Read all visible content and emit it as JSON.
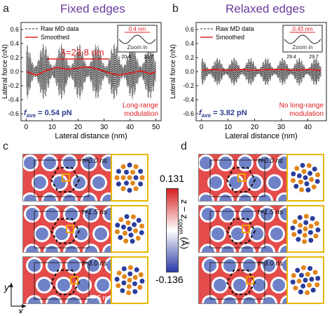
{
  "panels": {
    "a": {
      "letter": "a",
      "title": "Fixed edges"
    },
    "b": {
      "letter": "b",
      "title": "Relaxed edges"
    },
    "c": {
      "letter": "c"
    },
    "d": {
      "letter": "d"
    }
  },
  "chart_data": [
    {
      "type": "line",
      "panel": "a",
      "xlabel": "Lateral distance (nm)",
      "ylabel": "Lateral force (nN)",
      "xlim": [
        -2,
        52
      ],
      "ylim": [
        -0.7,
        0.7
      ],
      "xticks": [
        "0",
        "10",
        "20",
        "30",
        "40",
        "50"
      ],
      "yticks": [
        "-0.6",
        "-0.4",
        "-0.2",
        "0.0",
        "0.2",
        "0.4",
        "0.6"
      ],
      "legend": [
        "Raw MD data",
        "Smoothed"
      ],
      "legend_position": "top-left",
      "annotations": {
        "wavelength": "λ=23.8 nm",
        "inset_period": "0.4 nm",
        "inset_zoom": "Zoom in",
        "inset_ticks": [
          "20.4",
          "20.7"
        ],
        "fave_label": "f",
        "fave_sub": "ave",
        "fave_value": " = 0.54 pN",
        "modulation": [
          "Long-range",
          "modulation"
        ]
      },
      "series": [
        {
          "name": "Raw MD data",
          "style": "dashed",
          "color": "#222222",
          "amplitude": 0.4,
          "range": [
            0,
            50
          ]
        },
        {
          "name": "Smoothed",
          "color": "#e02020",
          "x": [
            0,
            4,
            8,
            12,
            16,
            20,
            24,
            28,
            32,
            36,
            40,
            44,
            48,
            50
          ],
          "y": [
            0.0,
            -0.05,
            0.02,
            0.06,
            0.03,
            0.05,
            0.07,
            0.03,
            -0.02,
            -0.05,
            -0.02,
            0.01,
            -0.03,
            0.0
          ]
        }
      ]
    },
    {
      "type": "line",
      "panel": "b",
      "xlabel": "Lateral distance (nm)",
      "ylabel": "Lateral force (nN)",
      "xlim": [
        -2,
        47
      ],
      "ylim": [
        -0.7,
        0.7
      ],
      "xticks": [
        "0",
        "10",
        "20",
        "30",
        "40"
      ],
      "yticks": [
        "-0.6",
        "-0.4",
        "-0.2",
        "0.0",
        "0.2",
        "0.4",
        "0.6"
      ],
      "legend": [
        "Raw MD data",
        "Smoothed"
      ],
      "legend_position": "top-left",
      "annotations": {
        "inset_period": "0.43 nm",
        "inset_zoom": "Zoom in",
        "inset_ticks": [
          "29.4",
          "29.7"
        ],
        "fave_label": "f",
        "fave_sub": "ave",
        "fave_value": " = 3.82 pN",
        "modulation": [
          "No long-range",
          "modulation"
        ]
      },
      "series": [
        {
          "name": "Raw MD data",
          "style": "dashed",
          "color": "#222222",
          "amplitude": 0.2,
          "range": [
            0,
            45
          ]
        },
        {
          "name": "Smoothed",
          "color": "#e02020",
          "x": [
            0,
            5,
            10,
            15,
            20,
            25,
            30,
            35,
            40,
            45
          ],
          "y": [
            0.02,
            0.03,
            0.02,
            0.03,
            0.02,
            0.03,
            0.03,
            0.02,
            0.03,
            0.02
          ]
        }
      ]
    }
  ],
  "maps": {
    "c_times": [
      "t=0.0 ns",
      "t=1.5 ns",
      "t=3.0 ns"
    ],
    "d_times": [
      "t=0.0 ns",
      "t=1.5 ns",
      "t=3.0 ns"
    ],
    "scalebar": "5 nm"
  },
  "colorbar": {
    "max": "0.131",
    "min": "-0.136",
    "label": "z − z",
    "label_sub": "coom",
    "label_unit": " (Å)",
    "colors": [
      "#d62020",
      "#ffffff",
      "#2a3aa8"
    ]
  },
  "axes_indicator": {
    "y": "y",
    "x": "x"
  }
}
